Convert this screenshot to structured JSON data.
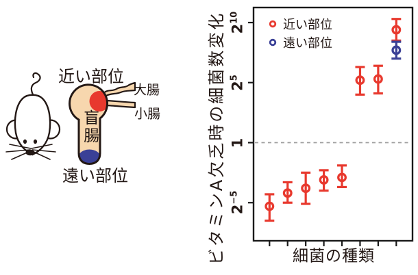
{
  "illustration": {
    "near_site_label": "近い部位",
    "far_site_label": "遠い部位",
    "large_intestine_label": "大腸",
    "small_intestine_label": "小腸",
    "cecum_label": "盲腸",
    "colors": {
      "near_site": "#e8392e",
      "far_site": "#3a4096",
      "organ_fill": "#f7d7ae",
      "outline": "#231815"
    }
  },
  "chart_data": {
    "type": "scatter",
    "title": "",
    "xlabel": "細菌の種類",
    "ylabel": "ビタミンA欠乏時の細菌数変化",
    "y_scale": "log2",
    "ylim_log2": [
      -8.2,
      11.3
    ],
    "x_categories": [
      "",
      "",
      "",
      "",
      "",
      "",
      "",
      ""
    ],
    "y_ticks": [
      {
        "log2": 10,
        "base": "2",
        "exp": "10"
      },
      {
        "log2": 5,
        "base": "2",
        "exp": "5"
      },
      {
        "log2": 0,
        "base": "1",
        "exp": ""
      },
      {
        "log2": -5,
        "base": "2",
        "exp": "−5"
      }
    ],
    "reference_line_log2": 0,
    "grid": false,
    "legend_position": "top-left-inside",
    "legend": [
      {
        "label": "近い部位",
        "color": "#e8392e"
      },
      {
        "label": "遠い部位",
        "color": "#3a4096"
      }
    ],
    "series": [
      {
        "name": "近い部位",
        "color": "#e8392e",
        "points": [
          {
            "x": 1,
            "log2": -5.3,
            "lo": -6.5,
            "hi": -4.3
          },
          {
            "x": 2,
            "log2": -4.2,
            "lo": -5.0,
            "hi": -3.3
          },
          {
            "x": 3,
            "log2": -3.8,
            "lo": -5.1,
            "hi": -2.5
          },
          {
            "x": 4,
            "log2": -3.1,
            "lo": -4.0,
            "hi": -2.3
          },
          {
            "x": 5,
            "log2": -2.9,
            "lo": -3.7,
            "hi": -1.9
          },
          {
            "x": 6,
            "log2": 5.2,
            "lo": 4.0,
            "hi": 6.3
          },
          {
            "x": 7,
            "log2": 5.3,
            "lo": 4.1,
            "hi": 6.4
          },
          {
            "x": 8,
            "log2": 9.4,
            "lo": 8.5,
            "hi": 10.3
          }
        ]
      },
      {
        "name": "遠い部位",
        "color": "#3a4096",
        "points": [
          {
            "x": 8,
            "log2": 7.7,
            "lo": 7.0,
            "hi": 8.4
          }
        ]
      }
    ]
  }
}
